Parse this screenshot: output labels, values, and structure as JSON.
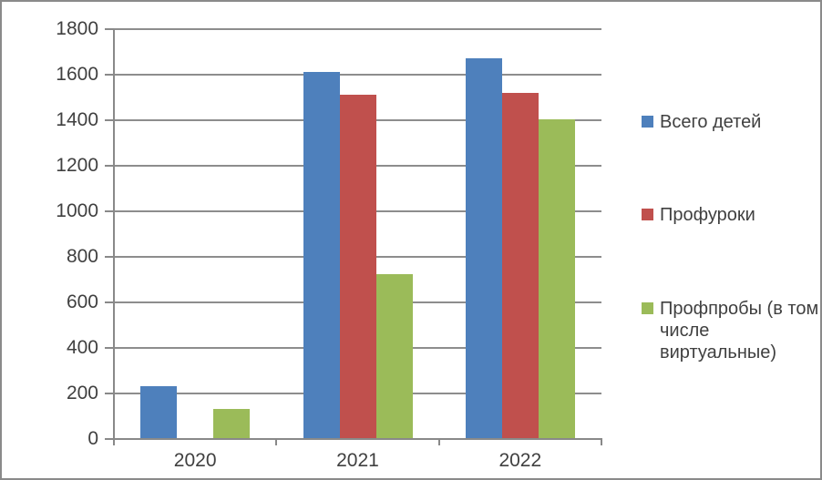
{
  "chart_data": {
    "type": "bar",
    "title": "",
    "xlabel": "",
    "ylabel": "",
    "categories": [
      "2020",
      "2021",
      "2022"
    ],
    "series": [
      {
        "name": "Всего детей",
        "color": "#4e80bc",
        "values": [
          230,
          1610,
          1670
        ]
      },
      {
        "name": "Профуроки",
        "color": "#c0504d",
        "values": [
          0,
          1510,
          1515
        ]
      },
      {
        "name": "Профпробы (в том числе виртуальные)",
        "color": "#9bbb59",
        "values": [
          130,
          720,
          1400
        ]
      }
    ],
    "ylim": [
      0,
      1800
    ],
    "y_step": 200,
    "y_tick_labels": [
      "0",
      "200",
      "400",
      "600",
      "800",
      "1000",
      "1200",
      "1400",
      "1600",
      "1800"
    ],
    "grid": true,
    "legend_position": "right"
  },
  "legend": {
    "items": [
      {
        "label": "Всего детей",
        "color": "#4e80bc"
      },
      {
        "label": "Профуроки",
        "color": "#c0504d"
      },
      {
        "label": "Профпробы (в том\nчисле\nвиртуальные)",
        "color": "#9bbb59"
      }
    ]
  },
  "colors": {
    "axis": "#898989",
    "gridline": "#8d8d8d",
    "text": "#404040",
    "frame_border": "#8a8a8a",
    "background": "#ffffff"
  }
}
